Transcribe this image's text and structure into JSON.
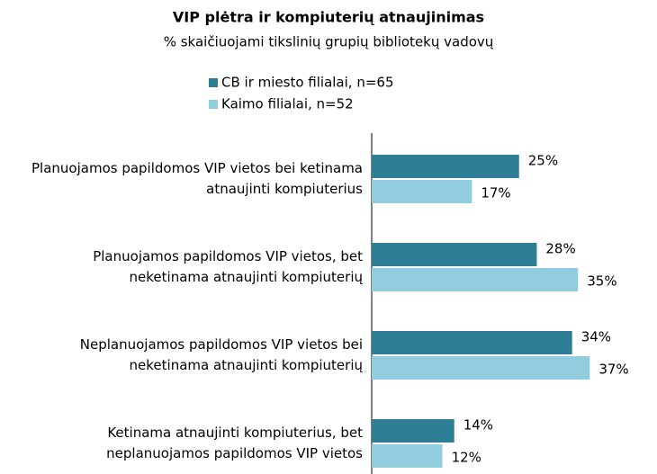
{
  "chart_data": {
    "type": "hbar",
    "title": "VIP plėtra ir kompiuterių atnaujinimas",
    "subtitle": "% skaičiuojami tikslinių grupių bibliotekų vadovų",
    "categories": [
      "Planuojamos papildomos VIP vietos bei ketinama atnaujinti kompiuterius",
      "Planuojamos papildomos VIP vietos, bet neketinama atnaujinti kompiuterių",
      "Neplanuojamos papildomos VIP vietos bei neketinama atnaujinti kompiuterių",
      "Ketinama atnaujinti kompiuterius, bet neplanuojamos papildomos VIP vietos"
    ],
    "series": [
      {
        "name": "CB ir miesto filialai, n=65",
        "color": "#2e7f96",
        "values": [
          25,
          28,
          34,
          14
        ],
        "value_labels": [
          "25%",
          "28%",
          "34%",
          "14%"
        ]
      },
      {
        "name": "Kaimo filialai, n=52",
        "color": "#92cddf",
        "values": [
          17,
          35,
          37,
          12
        ],
        "value_labels": [
          "17%",
          "35%",
          "37%",
          "12%"
        ]
      }
    ]
  }
}
